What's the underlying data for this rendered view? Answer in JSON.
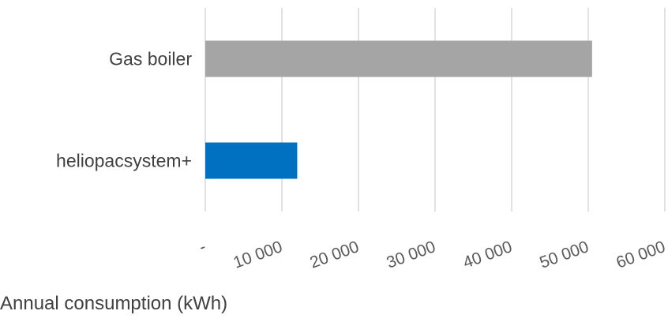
{
  "chart_data": {
    "type": "bar",
    "orientation": "horizontal",
    "categories": [
      "Gas boiler",
      "heliopacsystem+"
    ],
    "values": [
      50500,
      12000
    ],
    "bar_colors": [
      "#a5a5a5",
      "#0070c0"
    ],
    "xlabel": "Annual consumption  (kWh)",
    "xlim": [
      0,
      60000
    ],
    "x_ticks": [
      0,
      10000,
      20000,
      30000,
      40000,
      50000,
      60000
    ],
    "x_tick_labels": [
      "-",
      "10 000",
      "20 000",
      "30 000",
      "40 000",
      "50 000",
      "60 000"
    ],
    "grid": true,
    "legend": "none",
    "colors": {
      "gridline": "#d9d9d9",
      "text": "#404040"
    }
  }
}
